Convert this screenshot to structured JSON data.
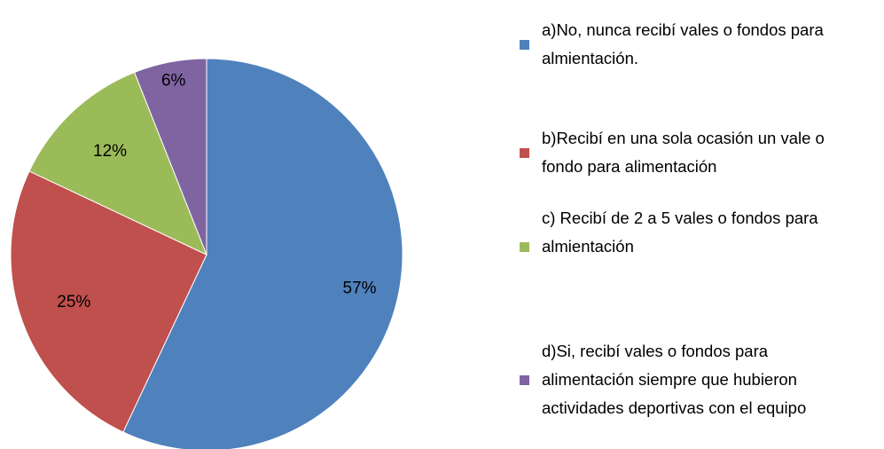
{
  "chart_data": {
    "type": "pie",
    "categories": [
      "a)No, nunca recibí vales o fondos para almientación.",
      "b)Recibí en una sola ocasión un vale o fondo para alimentación",
      "c) Recibí de 2 a 5 vales o fondos para almientación",
      "d)Si, recibí vales o fondos para alimentación siempre que hubieron actividades deportivas con el equipo"
    ],
    "values": [
      57,
      25,
      12,
      6
    ],
    "value_labels": [
      "57%",
      "25%",
      "12%",
      "6%"
    ],
    "colors": [
      "#4f81bd",
      "#c0504d",
      "#9bbb59",
      "#8064a2"
    ],
    "legend": "right"
  }
}
